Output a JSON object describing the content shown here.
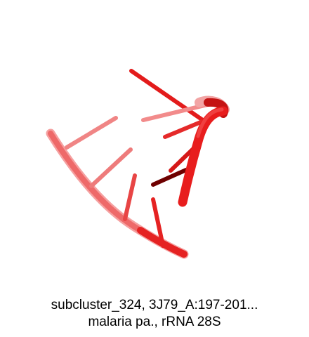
{
  "caption": {
    "line1": "subcluster_324, 3J79_A:197-201...",
    "line2": "malaria pa., rRNA 28S"
  },
  "colors": {
    "background": "#ffffff",
    "backbone": "#e81d1d",
    "backbone_faded": "#f07a7a",
    "base_dark": "#7a0000",
    "caption_text": "#000000"
  }
}
